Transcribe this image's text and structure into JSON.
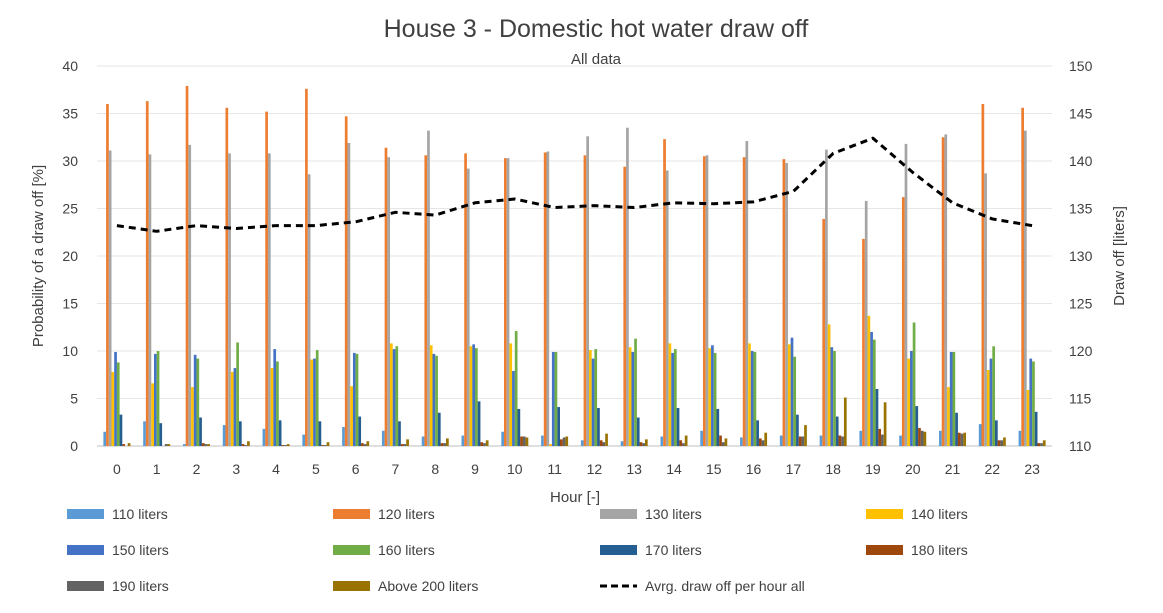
{
  "chart_data": {
    "type": "bar",
    "title": "House 3 - Domestic hot water draw off",
    "subtitle": "All data",
    "xlabel": "Hour [-]",
    "ylabel": "Probability of a draw off [%]",
    "y2label": "Draw off [liters]",
    "ylim": [
      0,
      40
    ],
    "y2lim": [
      110,
      150
    ],
    "yticks": [
      "0",
      "5",
      "10",
      "15",
      "20",
      "25",
      "30",
      "35",
      "40"
    ],
    "y2ticks": [
      "110",
      "115",
      "120",
      "125",
      "130",
      "135",
      "140",
      "145",
      "150"
    ],
    "categories": [
      "0",
      "1",
      "2",
      "3",
      "4",
      "5",
      "6",
      "7",
      "8",
      "9",
      "10",
      "11",
      "12",
      "13",
      "14",
      "15",
      "16",
      "17",
      "18",
      "19",
      "20",
      "21",
      "22",
      "23"
    ],
    "series": [
      {
        "name": "110 liters",
        "color": "#5b9bd5",
        "values": [
          1.5,
          2.6,
          0.2,
          2.2,
          1.8,
          1.2,
          2.0,
          1.6,
          1.0,
          1.1,
          1.5,
          1.1,
          0.6,
          0.5,
          1.0,
          1.6,
          0.9,
          1.1,
          1.1,
          1.6,
          1.1,
          1.6,
          2.3,
          1.6
        ]
      },
      {
        "name": "120 liters",
        "color": "#ed7d31",
        "values": [
          36.0,
          36.3,
          37.9,
          35.6,
          35.2,
          37.6,
          34.7,
          31.4,
          30.6,
          30.8,
          30.3,
          30.9,
          30.6,
          29.4,
          32.3,
          30.5,
          30.4,
          30.2,
          23.9,
          21.8,
          26.2,
          32.5,
          36.0,
          35.6
        ]
      },
      {
        "name": "130 liters",
        "color": "#a5a5a5",
        "values": [
          31.1,
          30.7,
          31.7,
          30.8,
          30.8,
          28.6,
          31.9,
          30.4,
          33.2,
          29.2,
          30.3,
          31.0,
          32.6,
          33.5,
          29.0,
          30.6,
          32.1,
          29.8,
          31.2,
          25.8,
          31.8,
          32.8,
          28.7,
          33.2
        ]
      },
      {
        "name": "140 liters",
        "color": "#ffc000",
        "values": [
          7.8,
          6.6,
          6.2,
          7.8,
          8.2,
          9.1,
          6.3,
          10.8,
          10.6,
          10.5,
          10.8,
          0.2,
          10.1,
          10.4,
          10.8,
          10.3,
          10.8,
          10.7,
          12.8,
          13.7,
          9.2,
          6.2,
          8.0,
          5.9
        ]
      },
      {
        "name": "150 liters",
        "color": "#4472c4",
        "values": [
          9.9,
          9.7,
          9.6,
          8.2,
          10.2,
          9.2,
          9.8,
          10.2,
          9.7,
          10.7,
          7.9,
          9.9,
          9.2,
          9.9,
          9.8,
          10.6,
          10.0,
          11.4,
          10.4,
          12.0,
          10.0,
          9.9,
          9.2,
          9.2
        ]
      },
      {
        "name": "160 liters",
        "color": "#70ad47",
        "values": [
          8.8,
          10.0,
          9.2,
          10.9,
          8.9,
          10.1,
          9.7,
          10.5,
          9.5,
          10.3,
          12.1,
          9.9,
          10.2,
          11.3,
          10.2,
          9.8,
          9.9,
          9.4,
          10.0,
          11.2,
          13.0,
          9.9,
          10.5,
          8.9
        ]
      },
      {
        "name": "170 liters",
        "color": "#255e91",
        "values": [
          3.3,
          2.4,
          3.0,
          2.6,
          2.7,
          2.6,
          3.1,
          2.6,
          3.5,
          4.7,
          3.9,
          4.1,
          4.0,
          3.0,
          4.0,
          3.9,
          2.7,
          3.3,
          3.1,
          6.0,
          4.2,
          3.5,
          2.7,
          3.6
        ]
      },
      {
        "name": "180 liters",
        "color": "#9e480e",
        "values": [
          0.2,
          0.0,
          0.3,
          0.2,
          0.1,
          0.1,
          0.3,
          0.2,
          0.3,
          0.4,
          1.0,
          0.7,
          0.6,
          0.4,
          0.6,
          1.1,
          0.8,
          1.0,
          1.1,
          1.8,
          1.9,
          1.4,
          0.6,
          0.3
        ]
      },
      {
        "name": "190 liters",
        "color": "#636363",
        "values": [
          0.0,
          0.2,
          0.2,
          0.1,
          0.1,
          0.1,
          0.2,
          0.2,
          0.3,
          0.3,
          1.0,
          0.9,
          0.4,
          0.3,
          0.3,
          0.4,
          0.6,
          1.0,
          1.0,
          1.2,
          1.6,
          1.3,
          0.6,
          0.3
        ]
      },
      {
        "name": "Above 200 liters",
        "color": "#997300",
        "values": [
          0.3,
          0.2,
          0.2,
          0.5,
          0.2,
          0.4,
          0.5,
          0.7,
          0.8,
          0.6,
          0.9,
          1.0,
          1.3,
          0.7,
          1.1,
          0.8,
          1.4,
          2.2,
          5.1,
          4.6,
          1.5,
          1.4,
          0.9,
          0.6
        ]
      }
    ],
    "line_series": {
      "name": "Avrg. draw off per hour all",
      "axis": "secondary",
      "color": "#000000",
      "values": [
        133.2,
        132.6,
        133.2,
        132.9,
        133.2,
        133.2,
        133.6,
        134.6,
        134.3,
        135.6,
        136.0,
        135.1,
        135.3,
        135.1,
        135.6,
        135.5,
        135.7,
        136.8,
        140.8,
        142.4,
        138.8,
        135.6,
        133.9,
        133.2
      ]
    },
    "legend_position": "bottom"
  }
}
